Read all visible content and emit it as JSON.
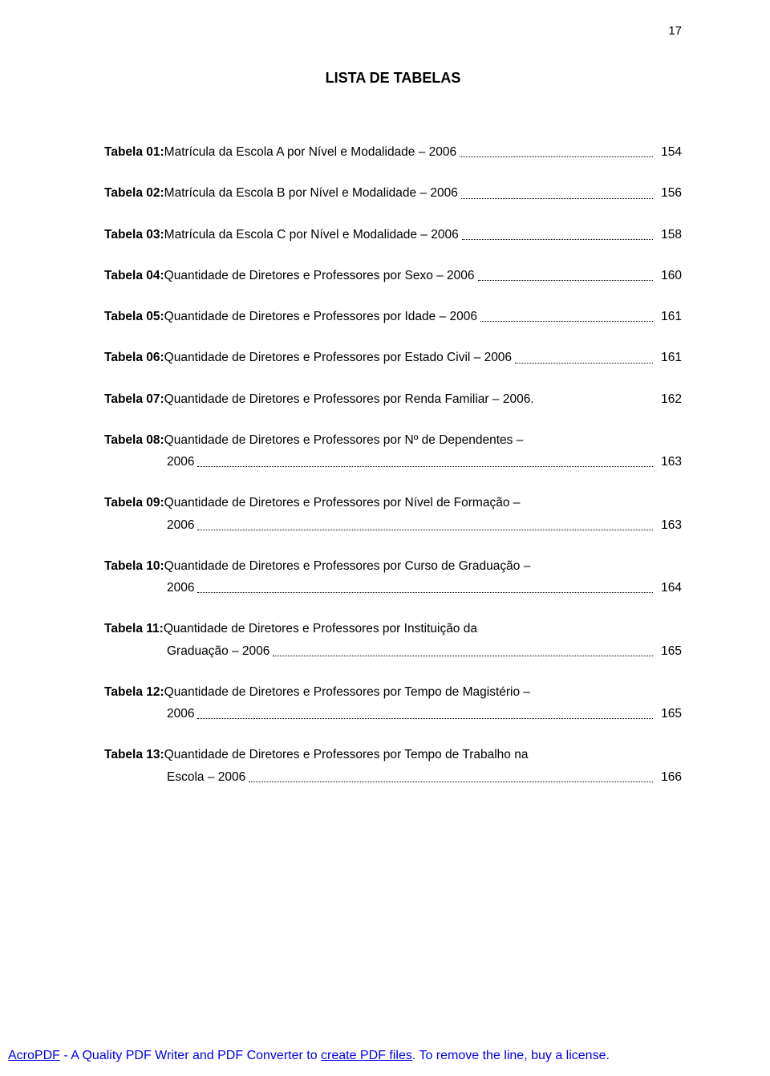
{
  "page_number": "17",
  "title": "LISTA DE TABELAS",
  "entries": [
    {
      "label": "Tabela 01:",
      "text": " Matrícula da Escola A por Nível e Modalidade – 2006",
      "page": "154"
    },
    {
      "label": "Tabela 02:",
      "text": " Matrícula da Escola B por Nível e Modalidade – 2006",
      "page": "156"
    },
    {
      "label": "Tabela 03:",
      "text": " Matrícula da Escola C por Nível e Modalidade – 2006",
      "page": "158"
    },
    {
      "label": "Tabela 04:",
      "text": " Quantidade de Diretores e Professores por Sexo – 2006",
      "page": "160"
    },
    {
      "label": "Tabela 05:",
      "text": " Quantidade de Diretores e Professores por Idade – 2006",
      "page": "161"
    },
    {
      "label": "Tabela 06:",
      "text": " Quantidade de Diretores e Professores por Estado Civil – 2006",
      "page": "161"
    },
    {
      "label": "Tabela 07:",
      "text": " Quantidade de Diretores e Professores por Renda Familiar – 2006.",
      "page": "162",
      "nodots": true
    },
    {
      "label": "Tabela 08:",
      "text": " Quantidade de Diretores e Professores por Nº de Dependentes –",
      "text2": "2006",
      "page": "163"
    },
    {
      "label": "Tabela 09:",
      "text": " Quantidade de Diretores e Professores por Nível de Formação –",
      "text2": "2006",
      "page": "163"
    },
    {
      "label": "Tabela 10:",
      "text": " Quantidade de Diretores e Professores por Curso de Graduação –",
      "text2": "2006",
      "page": "164"
    },
    {
      "label": "Tabela 11:",
      "text": " Quantidade de Diretores e Professores por Instituição da",
      "text2": "Graduação – 2006",
      "page": "165"
    },
    {
      "label": "Tabela 12:",
      "text": " Quantidade de Diretores e Professores por Tempo de Magistério –",
      "text2": "2006",
      "page": "165"
    },
    {
      "label": "Tabela 13:",
      "text": " Quantidade de Diretores e Professores por Tempo de Trabalho na",
      "text2": "Escola – 2006",
      "page": "166"
    }
  ],
  "footer": {
    "link1": "AcroPDF",
    "mid": " - A Quality PDF Writer and PDF Converter to ",
    "link2": "create PDF files",
    "tail": ". To remove the line, buy a license."
  }
}
